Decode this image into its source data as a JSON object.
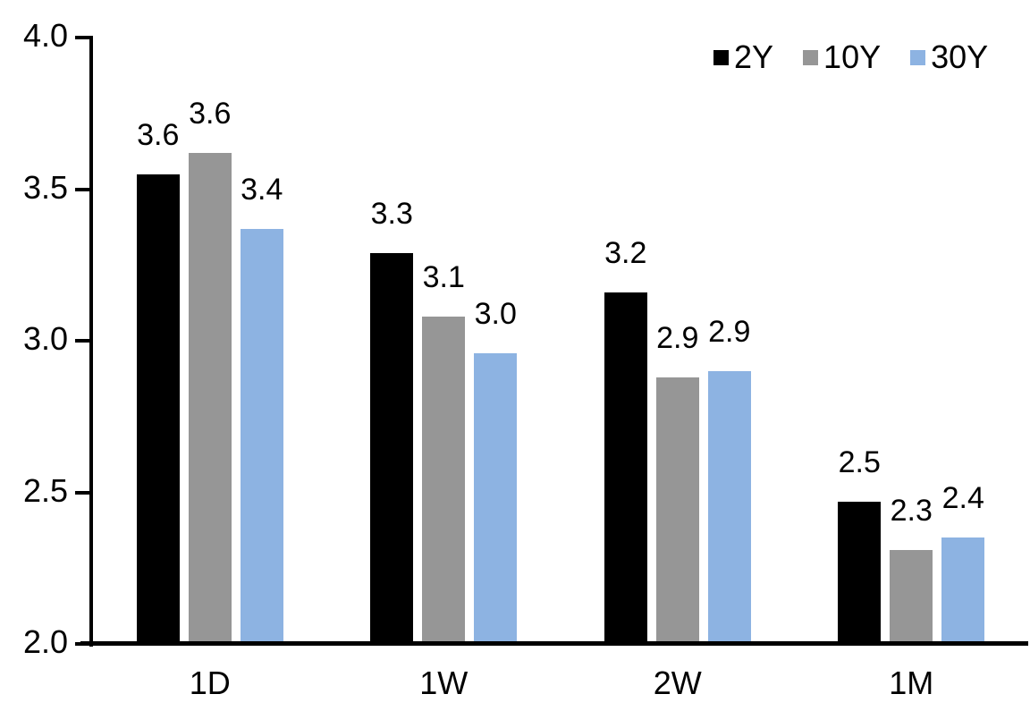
{
  "chart_data": {
    "type": "bar",
    "title": "",
    "xlabel": "",
    "ylabel": "",
    "categories": [
      "1D",
      "1W",
      "2W",
      "1M"
    ],
    "series": [
      {
        "name": "2Y",
        "color": "#000000",
        "values": [
          3.55,
          3.29,
          3.16,
          2.47
        ],
        "labels": [
          "3.6",
          "3.3",
          "3.2",
          "2.5"
        ]
      },
      {
        "name": "10Y",
        "color": "#969696",
        "values": [
          3.62,
          3.08,
          2.88,
          2.31
        ],
        "labels": [
          "3.6",
          "3.1",
          "2.9",
          "2.3"
        ]
      },
      {
        "name": "30Y",
        "color": "#8DB3E2",
        "values": [
          3.37,
          2.96,
          2.9,
          2.35
        ],
        "labels": [
          "3.4",
          "3.0",
          "2.9",
          "2.4"
        ]
      }
    ],
    "ylim": [
      2.0,
      4.0
    ],
    "yticks": [
      2.0,
      2.5,
      3.0,
      3.5,
      4.0
    ],
    "ytick_labels": [
      "2.0",
      "2.5",
      "3.0",
      "3.5",
      "4.0"
    ],
    "grid": false,
    "value_labels": true,
    "legend_position": "top-right"
  },
  "colors": {
    "background": "#ffffff",
    "axis": "#000000",
    "text": "#000000"
  }
}
